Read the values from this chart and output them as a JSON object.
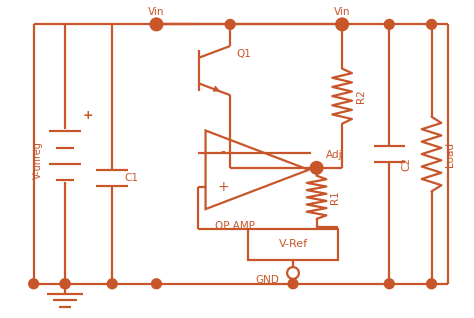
{
  "color": "#C8562A",
  "bg_color": "#FFFFFF",
  "lw": 1.6,
  "figsize": [
    4.74,
    3.18
  ],
  "dpi": 100,
  "labels": {
    "V_unreg": "V-unreg",
    "C1": "C1",
    "Vin_left": "Vin",
    "Q1": "Q1",
    "Vin_right": "Vin",
    "R2": "R2",
    "Adj": "Adj",
    "R1": "R1",
    "OP_AMP": "OP AMP",
    "V_Ref": "V-Ref",
    "GND": "GND",
    "C2": "C2",
    "Load": "Load"
  }
}
